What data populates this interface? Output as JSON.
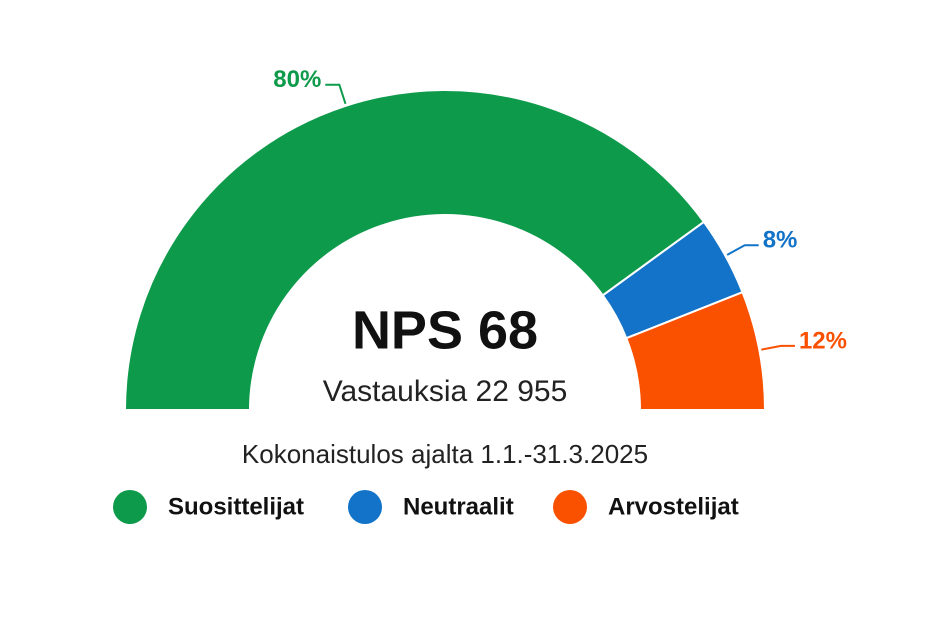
{
  "chart_data": {
    "type": "semi-donut",
    "title": "NPS 68",
    "subtitle": "Vastauksia 22 955",
    "caption": "Kokonaistulos ajalta 1.1.-31.3.2025",
    "categories": [
      "Suosittelijat",
      "Neutraalit",
      "Arvostelijat"
    ],
    "values": [
      80,
      8,
      12
    ],
    "value_labels": [
      "80%",
      "8%",
      "12%"
    ],
    "colors": [
      "#0e9a4b",
      "#1273c8",
      "#fa5100"
    ],
    "legend": "bottom"
  }
}
